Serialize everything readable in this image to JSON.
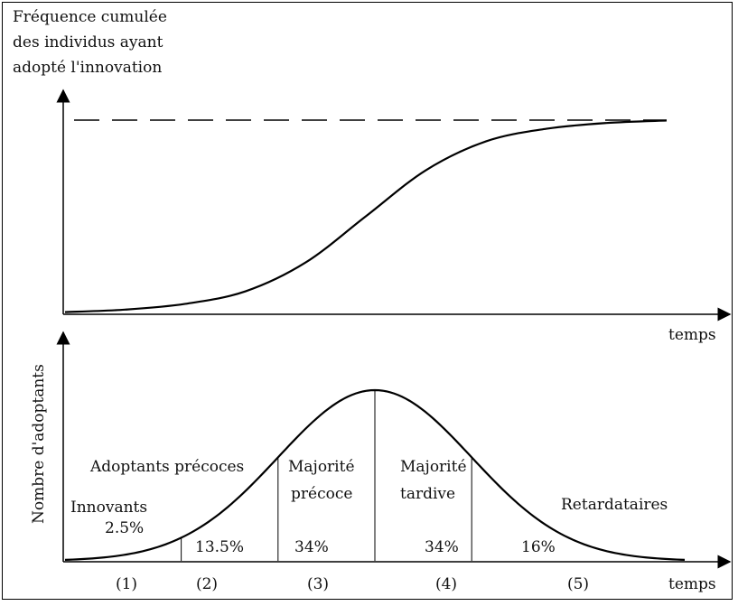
{
  "chart_data": [
    {
      "type": "line",
      "ylabel_lines": [
        "Fréquence cumulée",
        "des individus ayant",
        "adopté l'innovation"
      ],
      "xlabel": "temps",
      "x": [
        0,
        10,
        20,
        30,
        40,
        50,
        60,
        70,
        80,
        90,
        100
      ],
      "series": [
        {
          "values": [
            0.2,
            1.5,
            4.5,
            11,
            26,
            50,
            74,
            89,
            95.5,
            98.5,
            99.8
          ]
        }
      ],
      "asymptote": 100,
      "asymptote_style": "dashed",
      "ylim": [
        0,
        100
      ],
      "xlim": [
        0,
        100
      ],
      "grid": false
    },
    {
      "type": "area",
      "ylabel": "Nombre d'adoptants",
      "xlabel": "temps",
      "distribution": "normal",
      "xlim": [
        -3.2,
        3.2
      ],
      "boundaries": [
        -2,
        -1,
        0,
        1
      ],
      "segments": [
        {
          "index": "(1)",
          "name": "Innovants",
          "share": "2.5%"
        },
        {
          "index": "(2)",
          "name": "Adoptants précoces",
          "share": "13.5%"
        },
        {
          "index": "(3)",
          "name_lines": [
            "Majorité",
            "précoce"
          ],
          "share": "34%"
        },
        {
          "index": "(4)",
          "name_lines": [
            "Majorité",
            "tardive"
          ],
          "share": "34%"
        },
        {
          "index": "(5)",
          "name": "Retardataires",
          "share": "16%"
        }
      ],
      "grid": false
    }
  ]
}
